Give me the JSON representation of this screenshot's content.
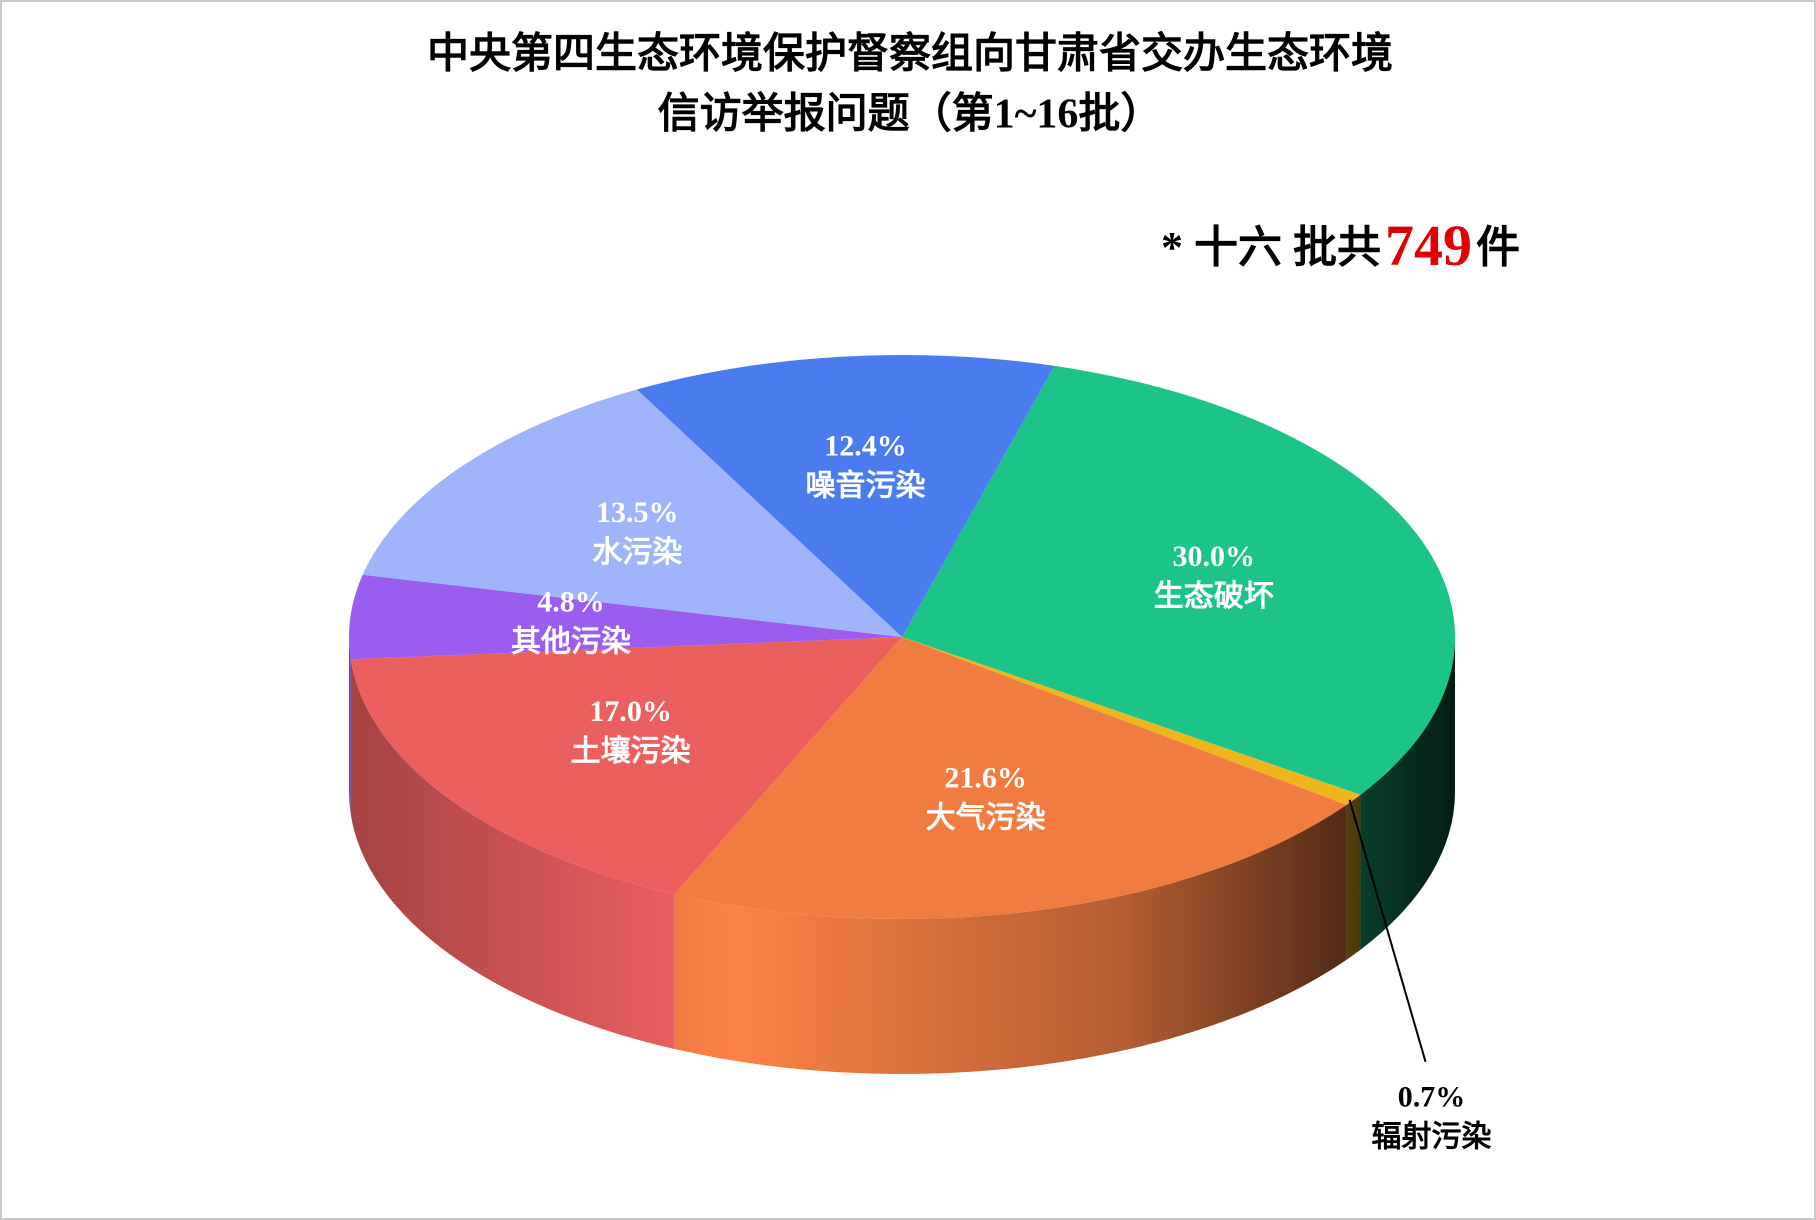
{
  "chart_data": {
    "type": "pie3d",
    "title": [
      "中央第四生态环境保护督察组向甘肃省交办生态环境",
      "信访举报问题（第1~16批）"
    ],
    "note": {
      "prefix": "* 十六 批共",
      "total": 749,
      "suffix": "件"
    },
    "start_angle": 16,
    "categories": [
      "生态破坏",
      "辐射污染",
      "大气污染",
      "土壤污染",
      "其他污染",
      "水污染",
      "噪音污染"
    ],
    "values": [
      30,
      0.7,
      21.6,
      17,
      4.8,
      13.5,
      12.4
    ],
    "value_labels": [
      "30.0%",
      "0.7%",
      "21.6%",
      "17.0%",
      "4.8%",
      "13.5%",
      "12.4%"
    ],
    "colors": [
      "#1cc488",
      "#f0b41c",
      "#f07c42",
      "#eb5f5f",
      "#9b5cf0",
      "#9fb4fa",
      "#4a7cf0"
    ]
  }
}
